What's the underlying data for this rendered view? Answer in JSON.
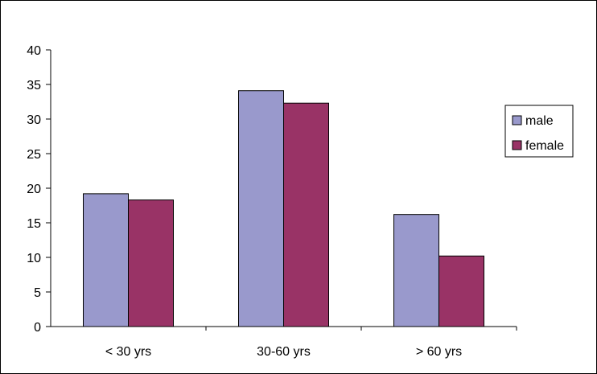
{
  "chart_data": {
    "type": "bar",
    "categories": [
      "< 30 yrs",
      "30-60 yrs",
      "> 60 yrs"
    ],
    "series": [
      {
        "name": "male",
        "values": [
          19.2,
          34.1,
          16.2
        ],
        "color": "#9999cc"
      },
      {
        "name": "female",
        "values": [
          18.3,
          32.3,
          10.2
        ],
        "color": "#993366"
      }
    ],
    "ylim": [
      0,
      40
    ],
    "yticks": [
      "0",
      "5",
      "10",
      "15",
      "20",
      "25",
      "30",
      "35",
      "40"
    ],
    "grid": false,
    "legend": "right",
    "title": "",
    "xlabel": "",
    "ylabel": ""
  }
}
